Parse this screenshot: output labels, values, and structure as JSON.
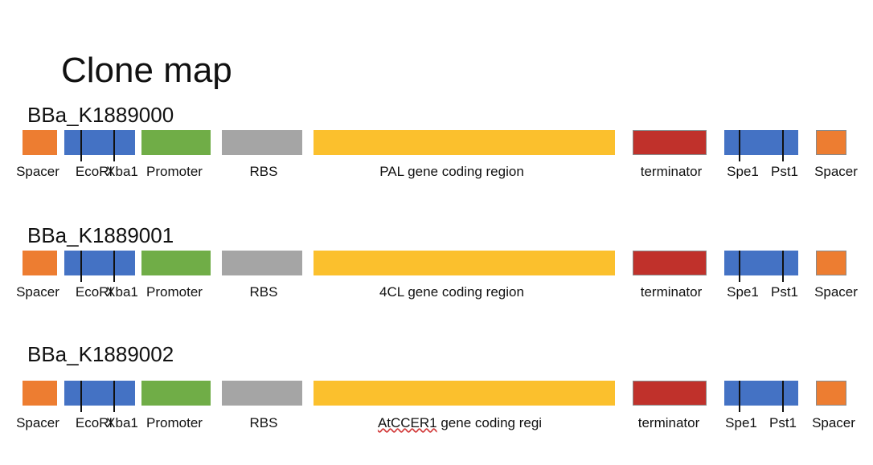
{
  "title": "Clone map",
  "colors": {
    "spacer": "#ED7D31",
    "restriction_site": "#4472C4",
    "promoter": "#70AD47",
    "rbs": "#A5A5A5",
    "coding_region": "#FBC02D",
    "terminator": "#C0312B"
  },
  "constructs": [
    {
      "name": "BBa_K1889000",
      "labels": {
        "spacer_left": "Spacer",
        "ecori": "EcoRI",
        "xba1": "Xba1",
        "promoter": "Promoter",
        "rbs": "RBS",
        "coding": "PAL gene coding region",
        "terminator": "terminator",
        "spe1": "Spe1",
        "pst1": "Pst1",
        "spacer_right": "Spacer"
      }
    },
    {
      "name": "BBa_K1889001",
      "labels": {
        "spacer_left": "Spacer",
        "ecori": "EcoRI",
        "xba1": "Xba1",
        "promoter": "Promoter",
        "rbs": "RBS",
        "coding": "4CL gene coding region",
        "terminator": "terminator",
        "spe1": "Spe1",
        "pst1": "Pst1",
        "spacer_right": "Spacer"
      }
    },
    {
      "name": "BBa_K1889002",
      "labels": {
        "spacer_left": "Spacer",
        "ecori": "EcoRI",
        "xba1": "Xba1",
        "promoter": "Promoter",
        "rbs": "RBS",
        "coding": "AtCCER1 gene coding regi",
        "terminator": "terminator",
        "spe1": "Spe1",
        "pst1": "Pst1",
        "spacer_right": "Spacer"
      }
    }
  ]
}
